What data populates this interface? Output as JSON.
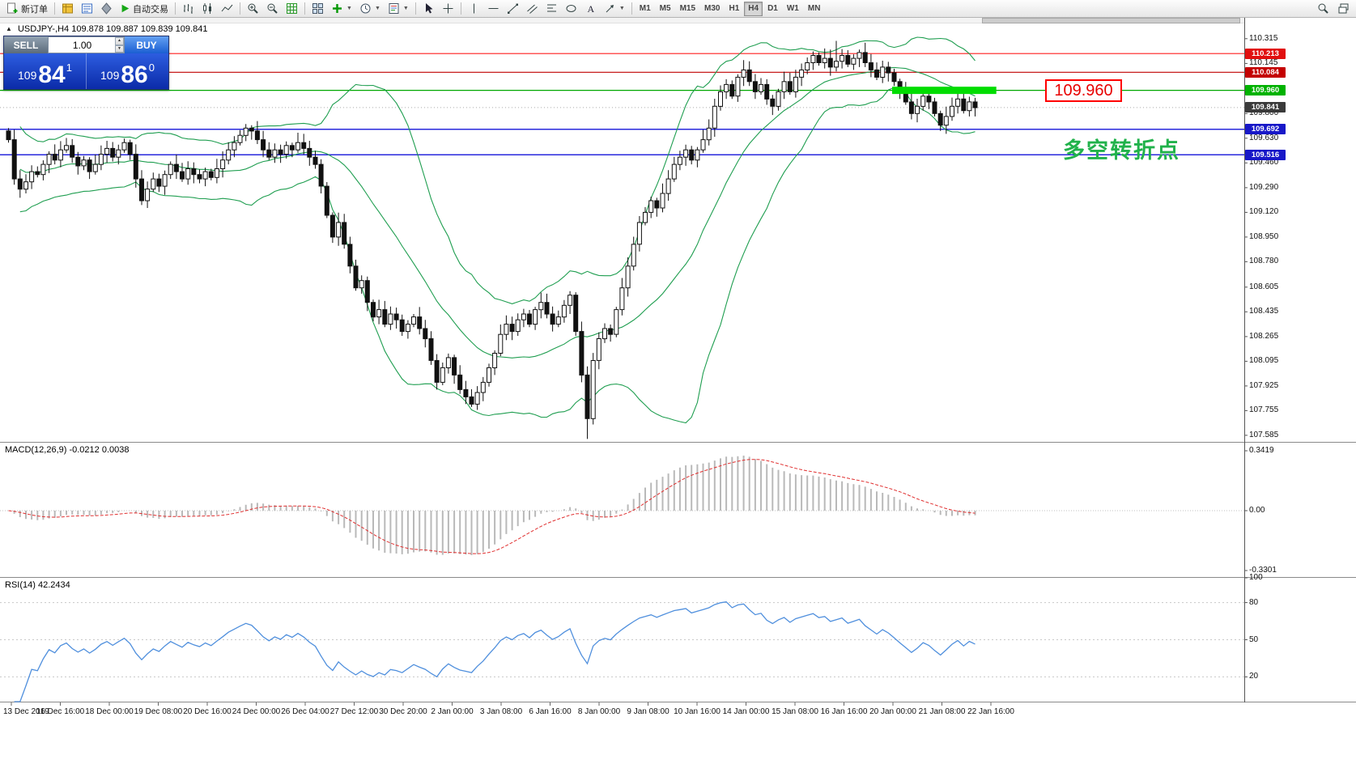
{
  "toolbar": {
    "new_order_label": "新订单",
    "autotrading_label": "自动交易",
    "timeframes": [
      "M1",
      "M5",
      "M15",
      "M30",
      "H1",
      "H4",
      "D1",
      "W1",
      "MN"
    ],
    "active_timeframe": "H4"
  },
  "one_click": {
    "sell_label": "SELL",
    "buy_label": "BUY",
    "volume": "1.00",
    "sell_price": {
      "base": "109",
      "big": "84",
      "sup": "1"
    },
    "buy_price": {
      "base": "109",
      "big": "86",
      "sup": "0"
    }
  },
  "chart_header": {
    "collapse_icon": "▲",
    "symbol": "USDJPY-,H4",
    "ohlc": "109.878 109.887 109.839 109.841"
  },
  "annotations": {
    "price_box": "109.960",
    "turning_point": "多空转折点"
  },
  "indicators": {
    "macd_label": "MACD(12,26,9) -0.0212 0.0038",
    "rsi_label": "RSI(14) 42.2434"
  },
  "price_scale": {
    "gridline_labels": [
      "110.315",
      "110.145",
      "109.800",
      "109.630",
      "109.460",
      "109.290",
      "109.120",
      "108.950",
      "108.780",
      "108.605",
      "108.435",
      "108.265",
      "108.095",
      "107.925",
      "107.755",
      "107.585"
    ],
    "badges": [
      {
        "text": "110.213",
        "price": 110.213,
        "bg": "#e10f0f"
      },
      {
        "text": "110.084",
        "price": 110.084,
        "bg": "#c40000"
      },
      {
        "text": "109.960",
        "price": 109.96,
        "bg": "#00b200"
      },
      {
        "text": "109.841",
        "price": 109.841,
        "bg": "#3a3a3a"
      },
      {
        "text": "109.692",
        "price": 109.692,
        "bg": "#1818c8"
      },
      {
        "text": "109.516",
        "price": 109.516,
        "bg": "#1818c8"
      }
    ]
  },
  "time_axis": [
    "13 Dec 2019",
    "16 Dec 16:00",
    "18 Dec 00:00",
    "19 Dec 08:00",
    "20 Dec 16:00",
    "24 Dec 00:00",
    "26 Dec 04:00",
    "27 Dec 12:00",
    "30 Dec 20:00",
    "2 Jan 00:00",
    "3 Jan 08:00",
    "6 Jan 16:00",
    "8 Jan 00:00",
    "9 Jan 08:00",
    "10 Jan 16:00",
    "14 Jan 00:00",
    "15 Jan 08:00",
    "16 Jan 16:00",
    "20 Jan 00:00",
    "21 Jan 08:00",
    "22 Jan 16:00"
  ],
  "chart_data": {
    "type": "candlestick",
    "symbol": "USDJPY-",
    "timeframe": "H4",
    "price_axis": {
      "min": 107.54,
      "max": 110.42
    },
    "closes": [
      109.62,
      109.35,
      109.28,
      109.33,
      109.4,
      109.38,
      109.45,
      109.52,
      109.48,
      109.55,
      109.58,
      109.5,
      109.44,
      109.48,
      109.4,
      109.45,
      109.52,
      109.56,
      109.5,
      109.55,
      109.6,
      109.52,
      109.35,
      109.2,
      109.28,
      109.35,
      109.3,
      109.38,
      109.45,
      109.4,
      109.35,
      109.42,
      109.38,
      109.35,
      109.4,
      109.36,
      109.42,
      109.48,
      109.55,
      109.6,
      109.65,
      109.7,
      109.68,
      109.62,
      109.55,
      109.5,
      109.55,
      109.52,
      109.58,
      109.55,
      109.6,
      109.56,
      109.5,
      109.45,
      109.3,
      109.1,
      108.95,
      109.05,
      108.9,
      108.75,
      108.6,
      108.65,
      108.5,
      108.4,
      108.45,
      108.35,
      108.42,
      108.38,
      108.3,
      108.35,
      108.4,
      108.32,
      108.25,
      108.1,
      107.95,
      108.05,
      108.12,
      108.0,
      107.9,
      107.85,
      107.8,
      107.88,
      107.95,
      108.05,
      108.15,
      108.28,
      108.35,
      108.3,
      108.38,
      108.42,
      108.35,
      108.45,
      108.5,
      108.42,
      108.35,
      108.4,
      108.48,
      108.55,
      108.3,
      108.0,
      107.7,
      108.1,
      108.25,
      108.32,
      108.28,
      108.45,
      108.6,
      108.75,
      108.9,
      109.05,
      109.12,
      109.2,
      109.15,
      109.25,
      109.35,
      109.45,
      109.5,
      109.55,
      109.48,
      109.55,
      109.62,
      109.7,
      109.85,
      109.95,
      110.0,
      109.92,
      110.05,
      110.1,
      110.02,
      109.95,
      110.0,
      109.9,
      109.85,
      109.95,
      110.02,
      109.95,
      110.05,
      110.1,
      110.15,
      110.2,
      110.15,
      110.18,
      110.12,
      110.16,
      110.2,
      110.14,
      110.18,
      110.22,
      110.15,
      110.1,
      110.05,
      110.12,
      110.08,
      110.02,
      109.95,
      109.88,
      109.8,
      109.85,
      109.92,
      109.88,
      109.8,
      109.72,
      109.78,
      109.85,
      109.9,
      109.82,
      109.88,
      109.84
    ],
    "wick_overrides": [
      {
        "index": 100,
        "low": 107.56
      },
      {
        "index": 143,
        "high": 110.3
      }
    ],
    "overlays": {
      "bollinger": {
        "period": 20,
        "deviation": 2,
        "color": "#1f9e50"
      },
      "hlines": [
        {
          "price": 110.213,
          "color": "#ff1e1e",
          "width": 1.2
        },
        {
          "price": 110.084,
          "color": "#c00000",
          "width": 1.2
        },
        {
          "price": 109.96,
          "color": "#00a800",
          "width": 1.2
        },
        {
          "price": 109.692,
          "color": "#2828dc",
          "width": 1.5
        },
        {
          "price": 109.516,
          "color": "#2828dc",
          "width": 1.5
        }
      ],
      "thick_line": {
        "price": 109.96,
        "x1_candle": 153,
        "x2_candle": 171,
        "color": "#00dd00",
        "width": 9
      },
      "current_price": 109.841
    },
    "macd": {
      "params": "12,26,9",
      "value": -0.0212,
      "signal_value": 0.0038,
      "scale_top": "0.3419",
      "scale_zero": "0.00",
      "scale_bottom": "-0.3301",
      "histogram_color": "#b9b9b9",
      "signal_color": "#e03030"
    },
    "rsi": {
      "period": 14,
      "value": 42.2434,
      "scale": [
        100,
        80,
        50,
        20
      ],
      "levels": [
        80,
        50,
        20
      ],
      "line_color": "#4f8fdd"
    }
  }
}
